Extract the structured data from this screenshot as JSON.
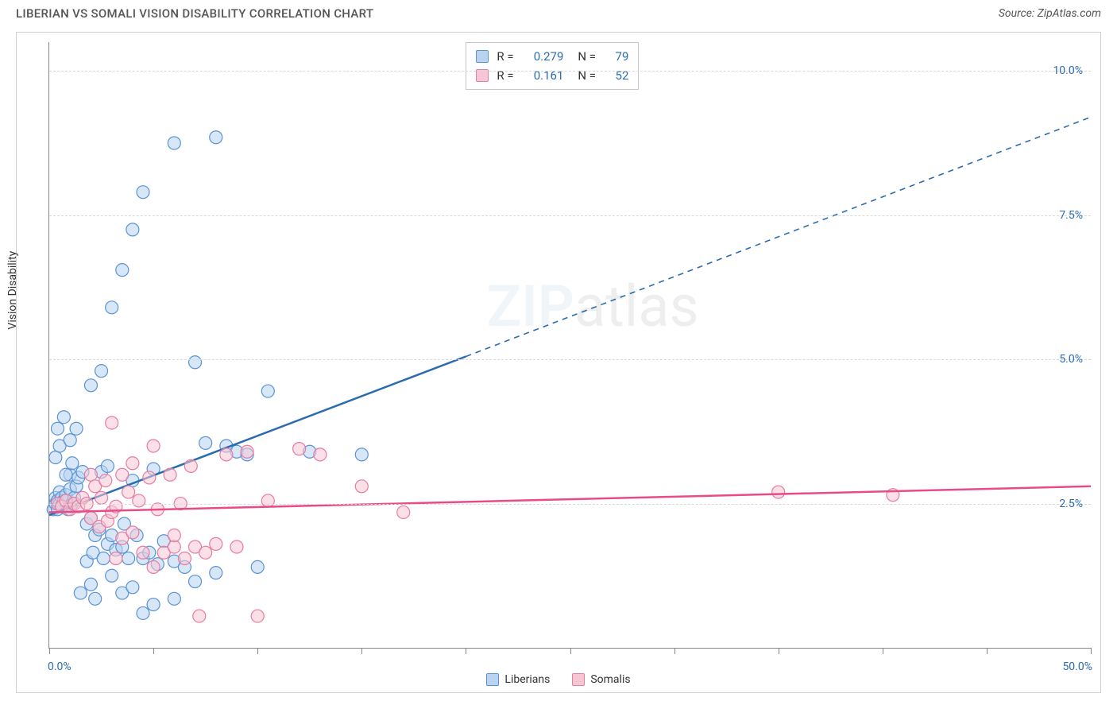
{
  "title": "LIBERIAN VS SOMALI VISION DISABILITY CORRELATION CHART",
  "source": "Source: ZipAtlas.com",
  "ylabel": "Vision Disability",
  "watermark_zip": "ZIP",
  "watermark_atlas": "atlas",
  "chart": {
    "type": "scatter",
    "xlim": [
      0,
      50
    ],
    "ylim": [
      0,
      10.5
    ],
    "xtick_positions": [
      0,
      5,
      10,
      15,
      20,
      25,
      30,
      35,
      40,
      45,
      50
    ],
    "xtick_labels": {
      "0": "0.0%",
      "50": "50.0%"
    },
    "ytick_positions": [
      2.5,
      5.0,
      7.5,
      10.0
    ],
    "ytick_labels": [
      "2.5%",
      "5.0%",
      "7.5%",
      "10.0%"
    ],
    "grid_color": "#d9d9d9",
    "xtick_label_color": "#2b6cb0",
    "ytick_label_color": "#2b6cb0",
    "marker_radius": 8,
    "marker_stroke_width": 1.2,
    "series": [
      {
        "name": "Liberians",
        "fill": "#b8d4f1",
        "stroke": "#5a93d4",
        "fill_opacity": 0.55,
        "points": [
          [
            0.2,
            2.4
          ],
          [
            0.3,
            2.5
          ],
          [
            0.3,
            2.6
          ],
          [
            0.4,
            2.4
          ],
          [
            0.4,
            2.55
          ],
          [
            0.5,
            2.7
          ],
          [
            0.5,
            2.5
          ],
          [
            0.6,
            2.6
          ],
          [
            0.6,
            2.45
          ],
          [
            0.7,
            2.55
          ],
          [
            0.8,
            2.65
          ],
          [
            0.9,
            2.4
          ],
          [
            1.0,
            2.75
          ],
          [
            1.1,
            2.5
          ],
          [
            1.2,
            2.6
          ],
          [
            1.3,
            2.8
          ],
          [
            0.3,
            3.3
          ],
          [
            0.4,
            3.8
          ],
          [
            0.5,
            3.5
          ],
          [
            1.0,
            3.0
          ],
          [
            1.1,
            3.2
          ],
          [
            1.4,
            2.95
          ],
          [
            1.6,
            3.05
          ],
          [
            1.8,
            2.15
          ],
          [
            2.0,
            2.25
          ],
          [
            2.0,
            1.1
          ],
          [
            2.2,
            1.95
          ],
          [
            2.4,
            2.05
          ],
          [
            2.5,
            3.05
          ],
          [
            2.8,
            1.8
          ],
          [
            3.0,
            1.95
          ],
          [
            3.2,
            1.7
          ],
          [
            3.5,
            1.75
          ],
          [
            3.6,
            2.15
          ],
          [
            3.8,
            1.55
          ],
          [
            4.0,
            2.9
          ],
          [
            4.2,
            1.95
          ],
          [
            4.5,
            1.55
          ],
          [
            4.8,
            1.65
          ],
          [
            5.0,
            3.1
          ],
          [
            5.2,
            1.45
          ],
          [
            5.5,
            1.85
          ],
          [
            6.0,
            1.5
          ],
          [
            6.5,
            1.4
          ],
          [
            7.0,
            1.15
          ],
          [
            7.5,
            3.55
          ],
          [
            8.0,
            1.3
          ],
          [
            8.5,
            3.5
          ],
          [
            9.0,
            3.4
          ],
          [
            9.5,
            3.35
          ],
          [
            10.0,
            1.4
          ],
          [
            10.5,
            4.45
          ],
          [
            12.5,
            3.4
          ],
          [
            15.0,
            3.35
          ],
          [
            2.0,
            4.55
          ],
          [
            2.5,
            4.8
          ],
          [
            3.0,
            5.9
          ],
          [
            3.5,
            6.55
          ],
          [
            4.0,
            7.25
          ],
          [
            4.5,
            7.9
          ],
          [
            6.0,
            8.75
          ],
          [
            8.0,
            8.85
          ],
          [
            7.0,
            4.95
          ],
          [
            1.5,
            0.95
          ],
          [
            2.2,
            0.85
          ],
          [
            3.0,
            1.25
          ],
          [
            3.5,
            0.95
          ],
          [
            4.0,
            1.05
          ],
          [
            4.5,
            0.6
          ],
          [
            5.0,
            0.75
          ],
          [
            6.0,
            0.85
          ],
          [
            1.8,
            1.5
          ],
          [
            2.1,
            1.65
          ],
          [
            2.6,
            1.55
          ],
          [
            0.8,
            3.0
          ],
          [
            1.0,
            3.6
          ],
          [
            0.7,
            4.0
          ],
          [
            1.3,
            3.8
          ],
          [
            2.8,
            3.15
          ]
        ],
        "trend": {
          "x1": 0,
          "y1": 2.3,
          "x_solid_end": 20,
          "y_solid_end": 5.05,
          "x2": 50,
          "y2": 9.2,
          "solid_width": 2.5,
          "dash_width": 1.6,
          "color": "#2b6cb0",
          "dash": "7,6"
        }
      },
      {
        "name": "Somalis",
        "fill": "#f7c6d4",
        "stroke": "#e77ba1",
        "fill_opacity": 0.55,
        "points": [
          [
            0.4,
            2.5
          ],
          [
            0.6,
            2.45
          ],
          [
            0.8,
            2.55
          ],
          [
            1.0,
            2.4
          ],
          [
            1.2,
            2.5
          ],
          [
            1.4,
            2.45
          ],
          [
            1.6,
            2.6
          ],
          [
            1.8,
            2.5
          ],
          [
            2.0,
            2.25
          ],
          [
            2.0,
            3.0
          ],
          [
            2.2,
            2.8
          ],
          [
            2.4,
            2.1
          ],
          [
            2.5,
            2.6
          ],
          [
            2.7,
            2.9
          ],
          [
            2.8,
            2.2
          ],
          [
            3.0,
            2.35
          ],
          [
            3.0,
            3.9
          ],
          [
            3.2,
            2.45
          ],
          [
            3.5,
            3.0
          ],
          [
            3.5,
            1.9
          ],
          [
            3.8,
            2.7
          ],
          [
            4.0,
            3.2
          ],
          [
            4.0,
            2.0
          ],
          [
            4.3,
            2.55
          ],
          [
            4.5,
            1.65
          ],
          [
            4.8,
            2.95
          ],
          [
            5.0,
            3.5
          ],
          [
            5.2,
            2.4
          ],
          [
            5.5,
            1.65
          ],
          [
            5.8,
            3.0
          ],
          [
            6.0,
            1.75
          ],
          [
            6.3,
            2.5
          ],
          [
            6.5,
            1.55
          ],
          [
            6.8,
            3.15
          ],
          [
            7.0,
            1.75
          ],
          [
            7.2,
            0.55
          ],
          [
            7.5,
            1.65
          ],
          [
            8.0,
            1.8
          ],
          [
            8.5,
            3.35
          ],
          [
            9.0,
            1.75
          ],
          [
            9.5,
            3.4
          ],
          [
            10.0,
            0.55
          ],
          [
            10.5,
            2.55
          ],
          [
            12.0,
            3.45
          ],
          [
            13.0,
            3.35
          ],
          [
            15.0,
            2.8
          ],
          [
            17.0,
            2.35
          ],
          [
            35.0,
            2.7
          ],
          [
            40.5,
            2.65
          ],
          [
            5.0,
            1.4
          ],
          [
            6.0,
            1.95
          ],
          [
            3.2,
            1.55
          ]
        ],
        "trend": {
          "x1": 0,
          "y1": 2.35,
          "x_solid_end": 50,
          "y_solid_end": 2.8,
          "x2": 50,
          "y2": 2.8,
          "solid_width": 2.5,
          "dash_width": 1.6,
          "color": "#e94b87",
          "dash": "7,6"
        }
      }
    ]
  },
  "stats": [
    {
      "swatch_fill": "#b8d4f1",
      "swatch_stroke": "#5a93d4",
      "r_label": "R =",
      "r_value": "0.279",
      "n_label": "N =",
      "n_value": "79"
    },
    {
      "swatch_fill": "#f7c6d4",
      "swatch_stroke": "#e77ba1",
      "r_label": "R =",
      "r_value": "0.161",
      "n_label": "N =",
      "n_value": "52"
    }
  ],
  "stats_value_color": "#2b6cb0",
  "legend": [
    {
      "label": "Liberians",
      "fill": "#b8d4f1",
      "stroke": "#5a93d4"
    },
    {
      "label": "Somalis",
      "fill": "#f7c6d4",
      "stroke": "#e77ba1"
    }
  ]
}
